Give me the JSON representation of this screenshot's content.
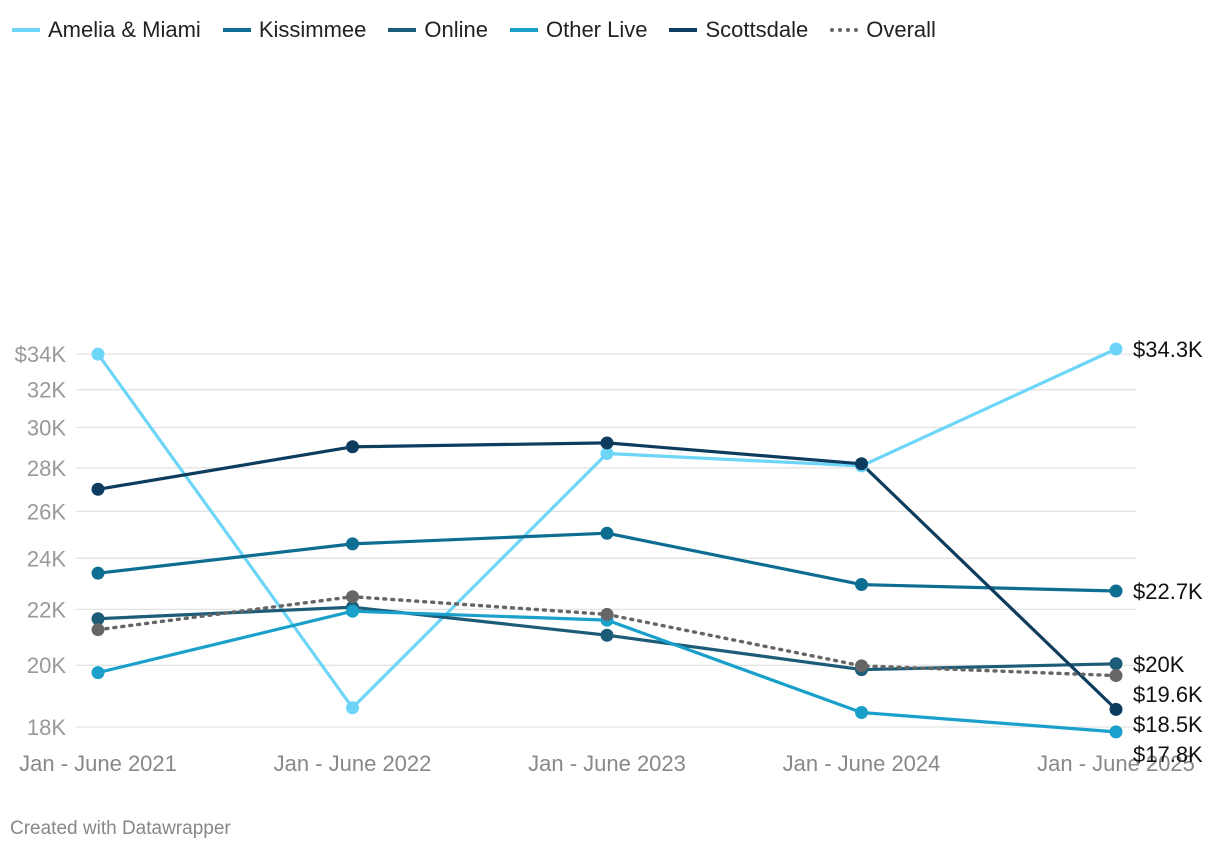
{
  "chart_data": {
    "type": "line",
    "title": "",
    "xlabel": "",
    "ylabel": "",
    "categories": [
      "Jan - June 2021",
      "Jan - June 2022",
      "Jan - June 2023",
      "Jan - June 2024",
      "Jan - June 2025"
    ],
    "y_scale": "log",
    "ylim": [
      17800,
      34300
    ],
    "y_ticks": [
      18000,
      20000,
      22000,
      24000,
      26000,
      28000,
      30000,
      32000,
      34000
    ],
    "y_tick_labels": [
      "18K",
      "20K",
      "22K",
      "24K",
      "26K",
      "28K",
      "30K",
      "32K",
      "$34K"
    ],
    "grid": true,
    "legend_position": "top-left",
    "series": [
      {
        "name": "Amelia & Miami",
        "color": "#6dd5f7",
        "dash": "solid",
        "values": [
          34000,
          18600,
          28700,
          28100,
          34300
        ],
        "end_label": "$34.3K"
      },
      {
        "name": "Kissimmee",
        "color": "#0e6e92",
        "dash": "solid",
        "values": [
          23400,
          24600,
          25050,
          22950,
          22700
        ],
        "end_label": "$22.7K"
      },
      {
        "name": "Online",
        "color": "#1c5c78",
        "dash": "solid",
        "values": [
          21650,
          22080,
          21050,
          19850,
          20050
        ],
        "end_label": "$20K"
      },
      {
        "name": "Other Live",
        "color": "#1aa0ca",
        "dash": "solid",
        "values": [
          19750,
          21930,
          21600,
          18450,
          17850
        ],
        "end_label": "$17.8K"
      },
      {
        "name": "Scottsdale",
        "color": "#0d3c5e",
        "dash": "solid",
        "values": [
          27000,
          29030,
          29220,
          28200,
          18550
        ],
        "end_label": "$18.5K"
      },
      {
        "name": "Overall",
        "color": "#666666",
        "dash": "dotted",
        "values": [
          21250,
          22480,
          21810,
          19980,
          19650
        ],
        "end_label": "$19.6K"
      }
    ]
  },
  "footer": {
    "credit": "Created with Datawrapper"
  }
}
